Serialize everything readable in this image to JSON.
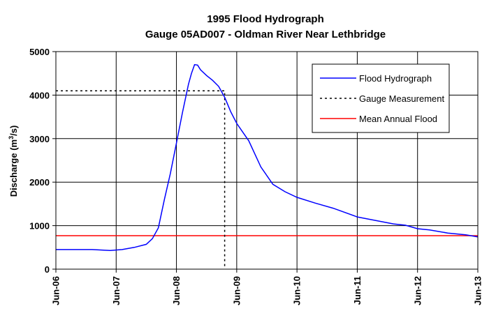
{
  "chart_data": {
    "type": "line",
    "title": "1995 Flood Hydrograph",
    "subtitle": "Gauge 05AD007 - Oldman River Near Lethbridge",
    "ylabel_main": "Discharge (m",
    "ylabel_sup": "3",
    "ylabel_tail": "/s)",
    "xlabel": "",
    "ylim": [
      0,
      5000
    ],
    "xlim": [
      0,
      7
    ],
    "y_ticks": [
      0,
      1000,
      2000,
      3000,
      4000,
      5000
    ],
    "x_ticks": [
      0,
      1,
      2,
      3,
      4,
      5,
      6,
      7
    ],
    "x_tick_labels": [
      "Jun-06",
      "Jun-07",
      "Jun-08",
      "Jun-09",
      "Jun-10",
      "Jun-11",
      "Jun-12",
      "Jun-13"
    ],
    "grid": true,
    "legend_position": "top-right",
    "series": [
      {
        "name": "Flood Hydrograph",
        "color": "#0000ff",
        "style": "solid",
        "x": [
          0,
          0.3,
          0.6,
          0.9,
          1.1,
          1.3,
          1.5,
          1.6,
          1.7,
          1.8,
          1.9,
          2.0,
          2.1,
          2.2,
          2.25,
          2.3,
          2.35,
          2.4,
          2.5,
          2.6,
          2.7,
          2.8,
          2.9,
          3.0,
          3.2,
          3.4,
          3.6,
          3.8,
          4.0,
          4.3,
          4.6,
          5.0,
          5.3,
          5.6,
          5.8,
          6.0,
          6.2,
          6.5,
          6.8,
          7.0
        ],
        "y": [
          450,
          450,
          450,
          430,
          450,
          500,
          570,
          700,
          950,
          1600,
          2200,
          2900,
          3600,
          4250,
          4500,
          4700,
          4690,
          4580,
          4450,
          4340,
          4200,
          3950,
          3620,
          3350,
          2950,
          2350,
          1950,
          1780,
          1650,
          1520,
          1400,
          1200,
          1120,
          1040,
          1010,
          930,
          900,
          830,
          790,
          740
        ]
      },
      {
        "name": "Gauge Measurement",
        "color": "#000000",
        "style": "dotted",
        "x": [
          0,
          2.8,
          2.8
        ],
        "y": [
          4100,
          4100,
          0
        ]
      },
      {
        "name": "Mean Annual Flood",
        "color": "#ff0000",
        "style": "solid",
        "x": [
          0,
          7
        ],
        "y": [
          770,
          770
        ]
      }
    ]
  }
}
